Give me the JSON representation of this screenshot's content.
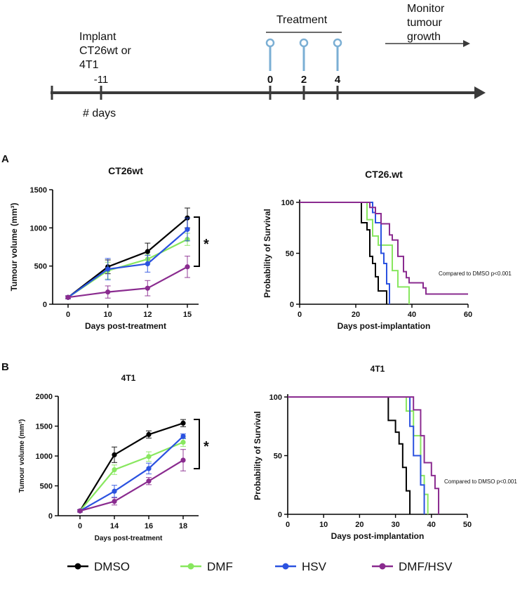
{
  "timeline": {
    "implant_label": [
      "Implant",
      "CT26wt or",
      "4T1"
    ],
    "days_label": "# days",
    "treatment_label": "Treatment",
    "monitor_label": [
      "Monitor",
      "tumour",
      "growth"
    ],
    "ticks": [
      {
        "day": -11,
        "label": "-11",
        "bold": false
      },
      {
        "day": 0,
        "label": "0",
        "bold": true
      },
      {
        "day": 2,
        "label": "2",
        "bold": true
      },
      {
        "day": 4,
        "label": "4",
        "bold": true
      }
    ],
    "treatment_days": [
      0,
      2,
      4
    ],
    "injection_color": "#7bafd4"
  },
  "panels": {
    "A": "A",
    "B": "B"
  },
  "note": "Compared to DMSO p<0.001",
  "significance": "*",
  "colors": {
    "DMSO": "#000000",
    "DMF": "#88e75f",
    "HSV": "#2b52e0",
    "DMF/HSV": "#8a2b8f"
  },
  "legend": [
    {
      "name": "DMSO",
      "color": "#000000"
    },
    {
      "name": "DMF",
      "color": "#88e75f"
    },
    {
      "name": "HSV",
      "color": "#2b52e0"
    },
    {
      "name": "DMF/HSV",
      "color": "#8a2b8f"
    }
  ],
  "chart_data": [
    {
      "id": "a-volume",
      "type": "line",
      "title": "CT26wt",
      "xlabel": "Days post-treatment",
      "ylabel": "Tumour volume (mm³)",
      "categories": [
        "0",
        "10",
        "12",
        "15"
      ],
      "ylim": [
        0,
        1500
      ],
      "yticks": [
        0,
        500,
        1000,
        1500
      ],
      "series": [
        {
          "name": "DMSO",
          "color": "#000000",
          "values": [
            90,
            490,
            690,
            1130
          ],
          "errors": [
            20,
            90,
            110,
            130
          ]
        },
        {
          "name": "DMF",
          "color": "#88e75f",
          "values": [
            90,
            440,
            590,
            850
          ],
          "errors": [
            20,
            110,
            60,
            80
          ]
        },
        {
          "name": "HSV",
          "color": "#2b52e0",
          "values": [
            90,
            460,
            530,
            980
          ],
          "errors": [
            20,
            140,
            110,
            150
          ]
        },
        {
          "name": "DMF/HSV",
          "color": "#8a2b8f",
          "values": [
            90,
            160,
            210,
            490
          ],
          "errors": [
            20,
            80,
            100,
            140
          ]
        }
      ]
    },
    {
      "id": "a-survival",
      "type": "line",
      "title": "CT26.wt",
      "xlabel": "Days post-implantation",
      "ylabel": "Probability of Survival",
      "xlim": [
        0,
        60
      ],
      "xticks": [
        0,
        20,
        40,
        60
      ],
      "ylim": [
        0,
        100
      ],
      "yticks": [
        0,
        50,
        100
      ],
      "series": [
        {
          "name": "DMSO",
          "color": "#000000",
          "x": [
            0,
            22,
            24,
            25,
            26,
            27,
            28,
            31
          ],
          "y": [
            100,
            80,
            73,
            47,
            40,
            27,
            13,
            0
          ]
        },
        {
          "name": "DMF",
          "color": "#88e75f",
          "x": [
            0,
            24,
            26,
            28,
            32,
            33,
            35,
            39
          ],
          "y": [
            100,
            83,
            67,
            58,
            58,
            33,
            17,
            0
          ]
        },
        {
          "name": "HSV",
          "color": "#2b52e0",
          "x": [
            0,
            26,
            27,
            29,
            30,
            31,
            32
          ],
          "y": [
            100,
            90,
            80,
            50,
            40,
            20,
            0
          ]
        },
        {
          "name": "DMF/HSV",
          "color": "#8a2b8f",
          "x": [
            0,
            25,
            27,
            29,
            32,
            33,
            35,
            37,
            38,
            39,
            44,
            45,
            60
          ],
          "y": [
            100,
            95,
            89,
            79,
            68,
            63,
            47,
            32,
            26,
            21,
            16,
            10,
            10
          ]
        }
      ]
    },
    {
      "id": "b-volume",
      "type": "line",
      "title": "4T1",
      "xlabel": "Days post-treatment",
      "ylabel": "Tumour volume (mm³)",
      "categories": [
        "0",
        "14",
        "16",
        "18"
      ],
      "ylim": [
        0,
        2000
      ],
      "yticks": [
        0,
        500,
        1000,
        1500,
        2000
      ],
      "series": [
        {
          "name": "DMSO",
          "color": "#000000",
          "values": [
            80,
            1020,
            1360,
            1550
          ],
          "errors": [
            20,
            130,
            60,
            60
          ]
        },
        {
          "name": "DMF",
          "color": "#88e75f",
          "values": [
            80,
            770,
            990,
            1230
          ],
          "errors": [
            20,
            80,
            80,
            70
          ]
        },
        {
          "name": "HSV",
          "color": "#2b52e0",
          "values": [
            80,
            410,
            790,
            1330
          ],
          "errors": [
            20,
            100,
            90,
            40
          ]
        },
        {
          "name": "DMF/HSV",
          "color": "#8a2b8f",
          "values": [
            80,
            240,
            580,
            930
          ],
          "errors": [
            20,
            60,
            60,
            180
          ]
        }
      ]
    },
    {
      "id": "b-survival",
      "type": "line",
      "title": "4T1",
      "xlabel": "Days post-implantation",
      "ylabel": "Probability of Survival",
      "xlim": [
        0,
        50
      ],
      "xticks": [
        0,
        10,
        20,
        30,
        40,
        50
      ],
      "ylim": [
        0,
        100
      ],
      "yticks": [
        0,
        50,
        100
      ],
      "series": [
        {
          "name": "DMSO",
          "color": "#000000",
          "x": [
            0,
            28,
            30,
            31,
            32,
            33,
            34
          ],
          "y": [
            100,
            80,
            70,
            60,
            40,
            20,
            0
          ]
        },
        {
          "name": "DMF",
          "color": "#88e75f",
          "x": [
            0,
            33,
            35,
            37,
            38,
            39
          ],
          "y": [
            100,
            88,
            67,
            33,
            17,
            0
          ]
        },
        {
          "name": "HSV",
          "color": "#2b52e0",
          "x": [
            0,
            34,
            35,
            36,
            37,
            38
          ],
          "y": [
            100,
            75,
            50,
            50,
            25,
            0
          ]
        },
        {
          "name": "DMF/HSV",
          "color": "#8a2b8f",
          "x": [
            0,
            35,
            37,
            38,
            40,
            41,
            42
          ],
          "y": [
            100,
            89,
            67,
            44,
            33,
            22,
            0
          ]
        }
      ]
    }
  ]
}
